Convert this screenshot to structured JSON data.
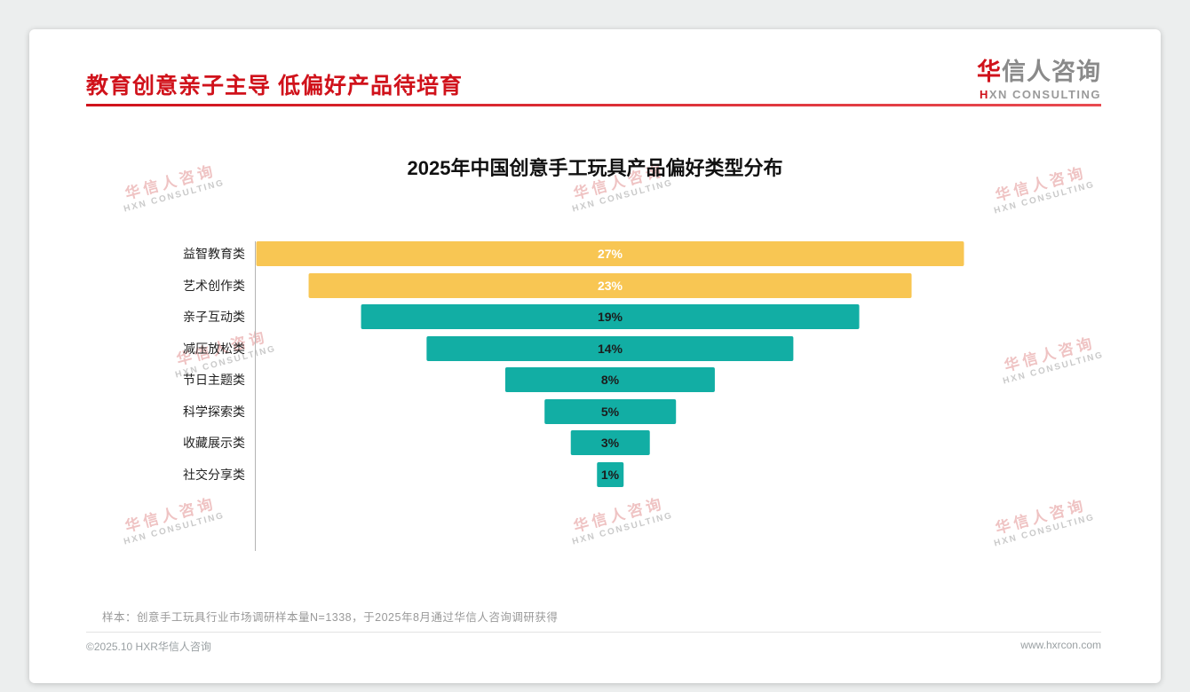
{
  "header": {
    "title": "教育创意亲子主导 低偏好产品待培育",
    "logo": {
      "zh_first": "华",
      "zh_rest": "信人咨询",
      "en_first": "H",
      "en_rest": "XN CONSULTING"
    }
  },
  "watermark": {
    "line1": "华信人咨询",
    "line2": "HXN CONSULTING"
  },
  "chart_data": {
    "type": "bar",
    "variant": "horizontal-centered-funnel",
    "title": "2025年中国创意手工玩具产品偏好类型分布",
    "categories": [
      "益智教育类",
      "艺术创作类",
      "亲子互动类",
      "减压放松类",
      "节日主题类",
      "科学探索类",
      "收藏展示类",
      "社交分享类"
    ],
    "values": [
      27,
      23,
      19,
      14,
      8,
      5,
      3,
      1
    ],
    "value_labels": [
      "27%",
      "23%",
      "19%",
      "14%",
      "8%",
      "5%",
      "3%",
      "1%"
    ],
    "unit": "%",
    "xlim": [
      0,
      27
    ],
    "grid": false,
    "legend": "none",
    "bar_colors": [
      "#F8C653",
      "#F8C653",
      "#12AEA4",
      "#12AEA4",
      "#12AEA4",
      "#12AEA4",
      "#12AEA4",
      "#12AEA4"
    ],
    "label_text_colors": [
      "#FFFFFF",
      "#FFFFFF",
      "#1c1c1c",
      "#1c1c1c",
      "#1c1c1c",
      "#1c1c1c",
      "#1c1c1c",
      "#1c1c1c"
    ],
    "colors": {
      "highlight_yellow": "#F8C653",
      "teal": "#12AEA4",
      "title_red": "#D0121B"
    }
  },
  "footer": {
    "note": "样本：创意手工玩具行业市场调研样本量N=1338，于2025年8月通过华信人咨询调研获得",
    "left": "©2025.10 HXR华信人咨询",
    "right": "www.hxrcon.com"
  }
}
